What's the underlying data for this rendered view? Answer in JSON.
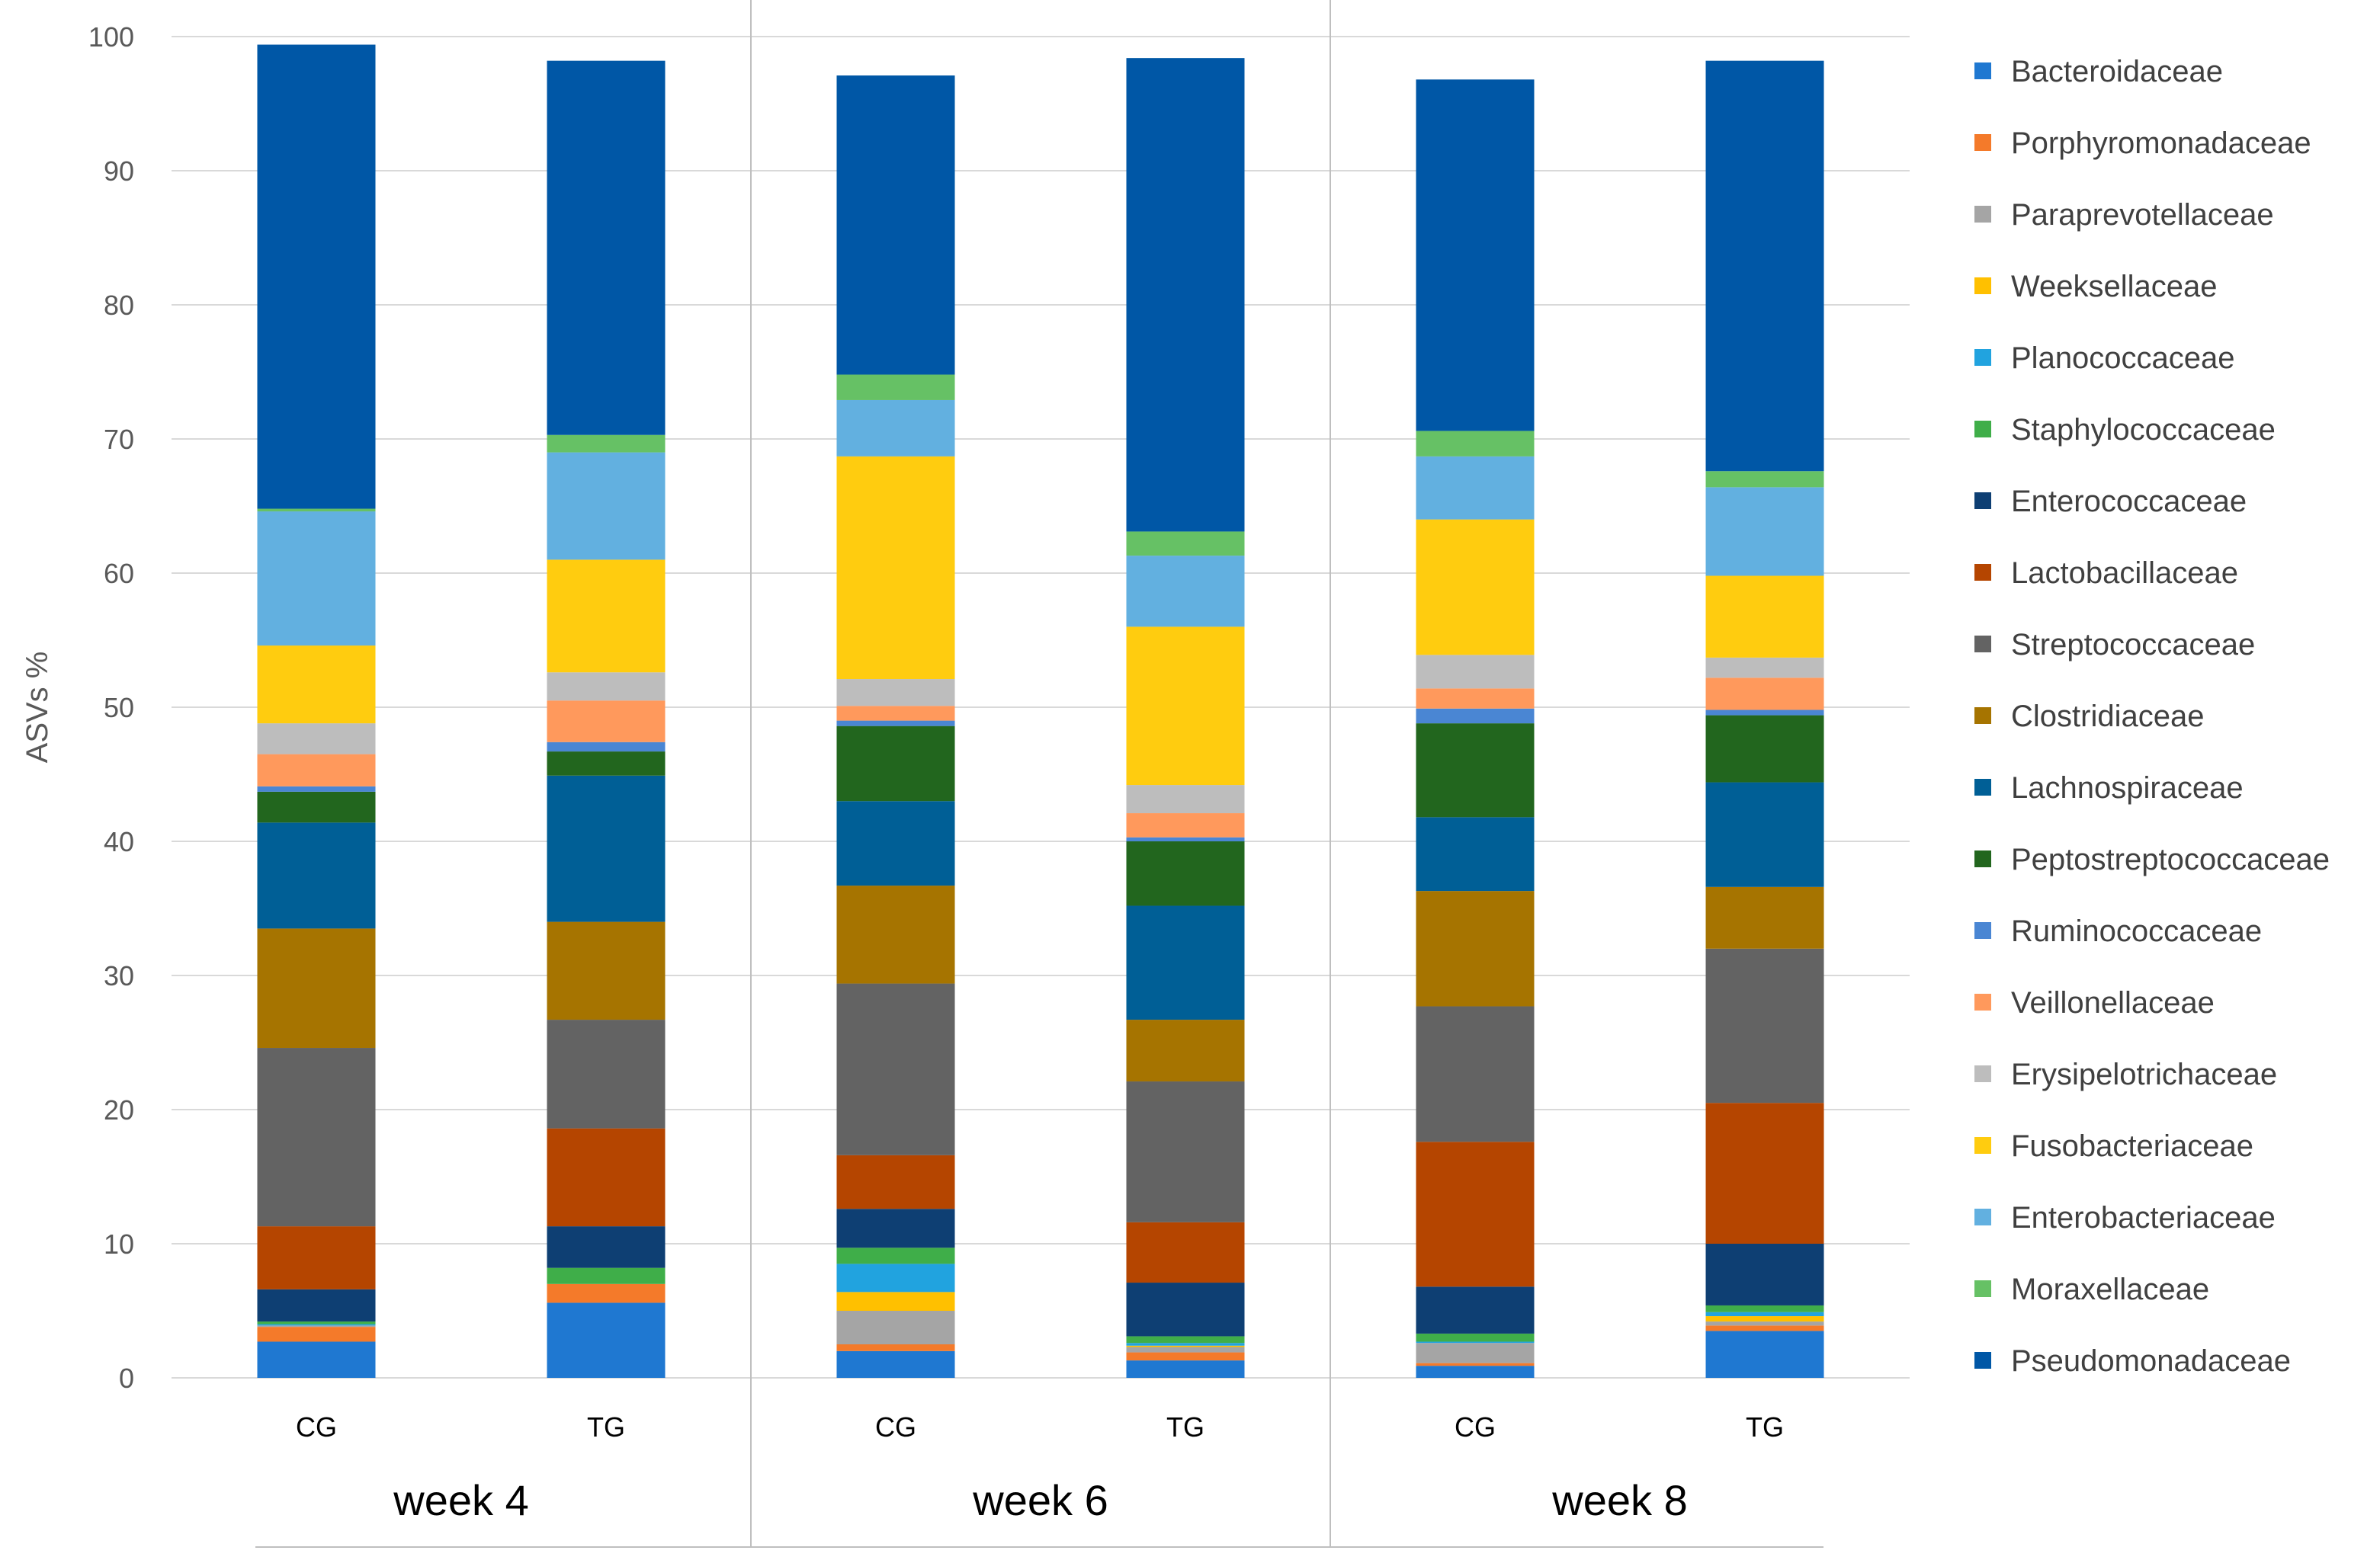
{
  "chart_data": {
    "type": "bar",
    "stacked": true,
    "title": "",
    "xlabel": "",
    "ylabel": "ASVs %",
    "ylim": [
      0,
      100
    ],
    "yticks": [
      0,
      10,
      20,
      30,
      40,
      50,
      60,
      70,
      80,
      90,
      100
    ],
    "grid": true,
    "legend_position": "right",
    "groups": [
      {
        "label": "week 4",
        "categories": [
          "CG",
          "TG"
        ]
      },
      {
        "label": "week 6",
        "categories": [
          "CG",
          "TG"
        ]
      },
      {
        "label": "week 8",
        "categories": [
          "CG",
          "TG"
        ]
      }
    ],
    "categories": [
      "CG",
      "TG",
      "CG",
      "TG",
      "CG",
      "TG"
    ],
    "series": [
      {
        "name": "Bacteroidaceae",
        "color": "#1F78D1",
        "values": [
          2.7,
          5.6,
          2.0,
          1.3,
          0.9,
          3.5
        ]
      },
      {
        "name": "Porphyromonadaceae",
        "color": "#F47A2A",
        "values": [
          1.1,
          1.4,
          0.5,
          0.6,
          0.2,
          0.4
        ]
      },
      {
        "name": "Paraprevotellaceae",
        "color": "#A5A5A5",
        "values": [
          0.1,
          0.0,
          2.5,
          0.4,
          1.5,
          0.3
        ]
      },
      {
        "name": "Weeksellaceae",
        "color": "#FFC000",
        "values": [
          0.0,
          0.0,
          1.4,
          0.1,
          0.0,
          0.4
        ]
      },
      {
        "name": "Planococcaceae",
        "color": "#21A3DF",
        "values": [
          0.1,
          0.0,
          2.1,
          0.2,
          0.1,
          0.3
        ]
      },
      {
        "name": "Staphylococcaceae",
        "color": "#3FAE49",
        "values": [
          0.2,
          1.2,
          1.2,
          0.5,
          0.6,
          0.5
        ]
      },
      {
        "name": "Enterococcaceae",
        "color": "#0E3F73",
        "values": [
          2.4,
          3.1,
          2.9,
          4.0,
          3.5,
          4.6
        ]
      },
      {
        "name": "Lactobacillaceae",
        "color": "#B54500",
        "values": [
          4.7,
          7.3,
          4.0,
          4.5,
          10.8,
          10.5
        ]
      },
      {
        "name": "Streptococcaceae",
        "color": "#636363",
        "values": [
          13.3,
          8.1,
          12.8,
          10.5,
          10.1,
          11.5
        ]
      },
      {
        "name": "Clostridiaceae",
        "color": "#A67400",
        "values": [
          8.9,
          7.3,
          7.3,
          4.6,
          8.6,
          4.6
        ]
      },
      {
        "name": "Lachnospiraceae",
        "color": "#005F96",
        "values": [
          7.9,
          10.9,
          6.3,
          8.5,
          5.5,
          7.8
        ]
      },
      {
        "name": "Peptostreptococcaceae",
        "color": "#22661E",
        "values": [
          2.3,
          1.8,
          5.6,
          4.8,
          7.0,
          5.0
        ]
      },
      {
        "name": "Ruminococcaceae",
        "color": "#4A86D3",
        "values": [
          0.4,
          0.7,
          0.4,
          0.3,
          1.1,
          0.4
        ]
      },
      {
        "name": "Veillonellaceae",
        "color": "#FF995C",
        "values": [
          2.4,
          3.1,
          1.1,
          1.8,
          1.5,
          2.4
        ]
      },
      {
        "name": "Erysipelotrichaceae",
        "color": "#BDBDBD",
        "values": [
          2.3,
          2.1,
          2.0,
          2.1,
          2.5,
          1.5
        ]
      },
      {
        "name": "Fusobacteriaceae",
        "color": "#FFCC0F",
        "values": [
          5.8,
          8.4,
          16.6,
          11.8,
          10.1,
          6.1
        ]
      },
      {
        "name": "Enterobacteriaceae",
        "color": "#62B0E0",
        "values": [
          10.0,
          8.0,
          4.2,
          5.3,
          4.7,
          6.6
        ]
      },
      {
        "name": "Moraxellaceae",
        "color": "#66C165",
        "values": [
          0.2,
          1.3,
          1.9,
          1.8,
          1.9,
          1.2
        ]
      },
      {
        "name": "Pseudomonadaceae",
        "color": "#0057A6",
        "values": [
          34.6,
          27.9,
          22.3,
          35.3,
          26.2,
          30.6
        ]
      }
    ]
  }
}
